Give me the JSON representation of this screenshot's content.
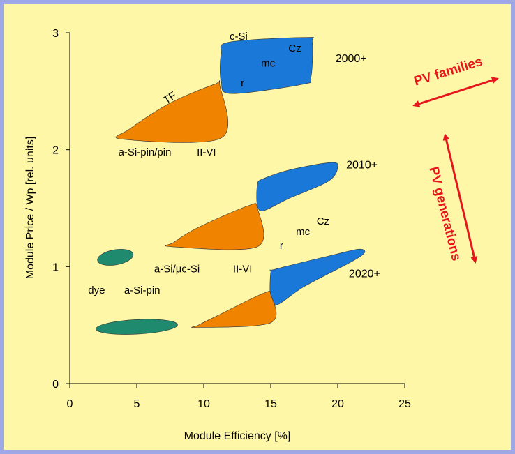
{
  "chart_data": {
    "type": "scatter",
    "title": "",
    "xlabel": "Module Efficiency [%]",
    "ylabel": "Module Price / Wp [rel. units]",
    "xlim": [
      0,
      25
    ],
    "ylim": [
      0,
      3
    ],
    "xticks": [
      "0",
      "5",
      "10",
      "15",
      "20",
      "25"
    ],
    "yticks": [
      "0",
      "1",
      "2",
      "3"
    ],
    "grid": false,
    "colors": {
      "c_si": "#1a78d8",
      "thin_film": "#f08400",
      "organic": "#1f8a6e",
      "annotation": "#e6171c"
    },
    "generations": [
      {
        "label": "2000+",
        "label_x": 21,
        "label_y": 2.75
      },
      {
        "label": "2010+",
        "label_x": 21.8,
        "label_y": 1.84
      },
      {
        "label": "2020+",
        "label_x": 22,
        "label_y": 0.91
      }
    ],
    "regions": [
      {
        "family": "c-Si",
        "generation": "2000+",
        "color": "#1a78d8",
        "outline": [
          [
            11.9,
            2.92
          ],
          [
            17.6,
            2.96
          ],
          [
            18.1,
            2.92
          ],
          [
            18.0,
            2.62
          ],
          [
            17.4,
            2.56
          ],
          [
            12.1,
            2.48
          ],
          [
            11.3,
            2.58
          ],
          [
            11.3,
            2.82
          ]
        ]
      },
      {
        "family": "TF",
        "generation": "2000+",
        "color": "#f08400",
        "outline": [
          [
            3.9,
            2.09
          ],
          [
            11.3,
            2.1
          ],
          [
            11.2,
            2.55
          ],
          [
            10.8,
            2.56
          ],
          [
            7.5,
            2.4
          ],
          [
            4.5,
            2.18
          ]
        ]
      },
      {
        "family": "c-Si",
        "generation": "2010+",
        "color": "#1a78d8",
        "outline": [
          [
            14.4,
            1.75
          ],
          [
            16.5,
            1.83
          ],
          [
            19.5,
            1.89
          ],
          [
            20.0,
            1.85
          ],
          [
            19.3,
            1.73
          ],
          [
            16.3,
            1.58
          ],
          [
            14.5,
            1.48
          ],
          [
            14.0,
            1.52
          ],
          [
            14.0,
            1.7
          ]
        ]
      },
      {
        "family": "TF",
        "generation": "2010+",
        "color": "#f08400",
        "outline": [
          [
            7.6,
            1.17
          ],
          [
            14.0,
            1.17
          ],
          [
            14.0,
            1.5
          ],
          [
            13.3,
            1.52
          ],
          [
            9.5,
            1.33
          ],
          [
            7.8,
            1.21
          ]
        ]
      },
      {
        "family": "c-Si",
        "generation": "2020+",
        "color": "#1a78d8",
        "outline": [
          [
            15.4,
            0.98
          ],
          [
            20.0,
            1.11
          ],
          [
            21.6,
            1.15
          ],
          [
            22.0,
            1.12
          ],
          [
            21.0,
            1.04
          ],
          [
            17.5,
            0.83
          ],
          [
            15.6,
            0.68
          ],
          [
            15.0,
            0.7
          ],
          [
            15.0,
            0.95
          ]
        ]
      },
      {
        "family": "TF",
        "generation": "2020+",
        "color": "#f08400",
        "outline": [
          [
            9.5,
            0.48
          ],
          [
            15.0,
            0.52
          ],
          [
            15.0,
            0.76
          ],
          [
            14.4,
            0.77
          ],
          [
            11.0,
            0.58
          ],
          [
            9.6,
            0.5
          ]
        ]
      },
      {
        "family": "dye",
        "generation": "2010+",
        "color": "#1f8a6e",
        "ellipse": {
          "cx": 3.4,
          "cy": 1.08,
          "rx": 1.35,
          "ry": 0.065,
          "tilt": 1.0
        }
      },
      {
        "family": "dye",
        "generation": "2020+",
        "color": "#1f8a6e",
        "ellipse": {
          "cx": 5.0,
          "cy": 0.485,
          "rx": 3.05,
          "ry": 0.062,
          "tilt": 0.3
        }
      }
    ],
    "labels": [
      {
        "text": "c-Si",
        "x": 12.6,
        "y": 2.94
      },
      {
        "text": "Cz",
        "x": 16.8,
        "y": 2.84
      },
      {
        "text": "mc",
        "x": 14.8,
        "y": 2.71
      },
      {
        "text": "r",
        "x": 12.9,
        "y": 2.54
      },
      {
        "text": "TF",
        "x": 7.6,
        "y": 2.42,
        "rotate": -33
      },
      {
        "text": "a-Si-pin/pin",
        "x": 5.6,
        "y": 1.95
      },
      {
        "text": "II-VI",
        "x": 10.2,
        "y": 1.95
      },
      {
        "text": "Cz",
        "x": 18.9,
        "y": 1.36
      },
      {
        "text": "mc",
        "x": 17.4,
        "y": 1.27
      },
      {
        "text": "r",
        "x": 15.8,
        "y": 1.15
      },
      {
        "text": "a-Si/µc-Si",
        "x": 8.0,
        "y": 0.95
      },
      {
        "text": "II-VI",
        "x": 12.9,
        "y": 0.95
      },
      {
        "text": "dye",
        "x": 2.0,
        "y": 0.77
      },
      {
        "text": "a-Si-pin",
        "x": 5.4,
        "y": 0.77
      }
    ]
  },
  "annotations": {
    "pv_families": "PV families",
    "pv_generations": "PV generations"
  }
}
